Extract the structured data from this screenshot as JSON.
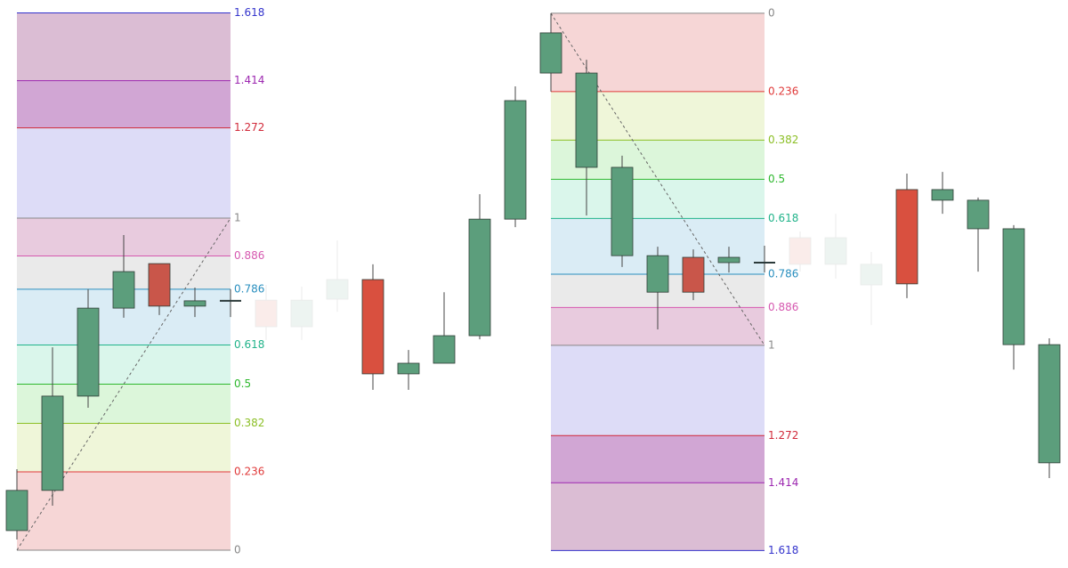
{
  "chart_data": {
    "type": "candlestick",
    "ylim": [
      -0.043,
      1.657
    ],
    "open": [
      0.059,
      0.18,
      0.464,
      0.729,
      0.863,
      0.735,
      0.751,
      0.753,
      0.673,
      0.756,
      0.815,
      0.531,
      0.563,
      0.646,
      0.997,
      1.437,
      1.437,
      1.153,
      0.887,
      0.882,
      0.882,
      0.866,
      0.941,
      0.861,
      0.861,
      1.086,
      1.054,
      1.054,
      0.968,
      0.619
    ],
    "high": [
      0.244,
      0.611,
      0.786,
      0.949,
      0.863,
      0.791,
      0.786,
      0.799,
      0.794,
      0.933,
      0.861,
      0.603,
      0.777,
      1.072,
      1.397,
      1.617,
      1.477,
      1.188,
      0.914,
      0.906,
      0.914,
      0.917,
      0.96,
      1.013,
      0.898,
      1.134,
      1.139,
      1.062,
      0.979,
      0.638
    ],
    "low": [
      0.032,
      0.134,
      0.429,
      0.7,
      0.708,
      0.702,
      0.702,
      0.633,
      0.633,
      0.718,
      0.483,
      0.483,
      0.563,
      0.635,
      0.973,
      1.381,
      1.008,
      0.853,
      0.665,
      0.753,
      0.836,
      0.836,
      0.839,
      0.818,
      0.678,
      0.759,
      1.013,
      0.839,
      0.544,
      0.217
    ],
    "close": [
      0.18,
      0.464,
      0.729,
      0.839,
      0.735,
      0.751,
      0.751,
      0.673,
      0.753,
      0.815,
      0.531,
      0.563,
      0.646,
      0.997,
      1.354,
      1.558,
      1.153,
      0.887,
      0.777,
      0.777,
      0.866,
      0.866,
      0.861,
      0.941,
      0.799,
      0.802,
      1.086,
      0.968,
      0.619,
      0.263
    ],
    "colors": [
      "#5c9e7c",
      "#5c9e7c",
      "#5c9e7c",
      "#5c9e7c",
      "#c9564a",
      "#5c9e7c",
      "#2b3a3a",
      "#d9503f",
      "#5c9e7c",
      "#5c9e7c",
      "#d9503f",
      "#5c9e7c",
      "#5c9e7c",
      "#5c9e7c",
      "#5c9e7c",
      "#5c9e7c",
      "#5c9e7c",
      "#5c9e7c",
      "#5c9e7c",
      "#c9564a",
      "#5c9e7c",
      "#2b3a3a",
      "#d9503f",
      "#5c9e7c",
      "#5c9e7c",
      "#d9503f",
      "#5c9e7c",
      "#5c9e7c",
      "#5c9e7c",
      "#5c9e7c"
    ],
    "faded": [
      7,
      8,
      9,
      22,
      23,
      24
    ],
    "faded_opacity": 0.1,
    "fib_levels": [
      {
        "value": 0,
        "color": "#888888",
        "fill": null
      },
      {
        "value": 0.236,
        "color": "#e03a3a",
        "fill": "#f5cfcf"
      },
      {
        "value": 0.382,
        "color": "#8cbf26",
        "fill": "#ecf5d2"
      },
      {
        "value": 0.5,
        "color": "#2eb82e",
        "fill": "#d6f5d3"
      },
      {
        "value": 0.618,
        "color": "#21b38a",
        "fill": "#d3f5e8"
      },
      {
        "value": 0.786,
        "color": "#2a8fbf",
        "fill": "#d3e9f3"
      },
      {
        "value": 0.886,
        "color": "#d659b0",
        "fill": "#e6e6e6"
      },
      {
        "value": 1,
        "color": "#888888",
        "fill": "#e4c2d8"
      },
      {
        "value": 1.272,
        "color": "#d12a3a",
        "fill": "#d7d6f6"
      },
      {
        "value": 1.414,
        "color": "#9c27b0",
        "fill": "#c996cc"
      },
      {
        "value": 1.618,
        "color": "#3333cc",
        "fill": "#d5b1cc"
      }
    ],
    "fibs": [
      {
        "start": 0,
        "end": 6,
        "price_0": 0,
        "price_1": 1
      },
      {
        "start": 15,
        "end": 21,
        "price_0": 1.617,
        "price_1": 0.617
      }
    ]
  }
}
